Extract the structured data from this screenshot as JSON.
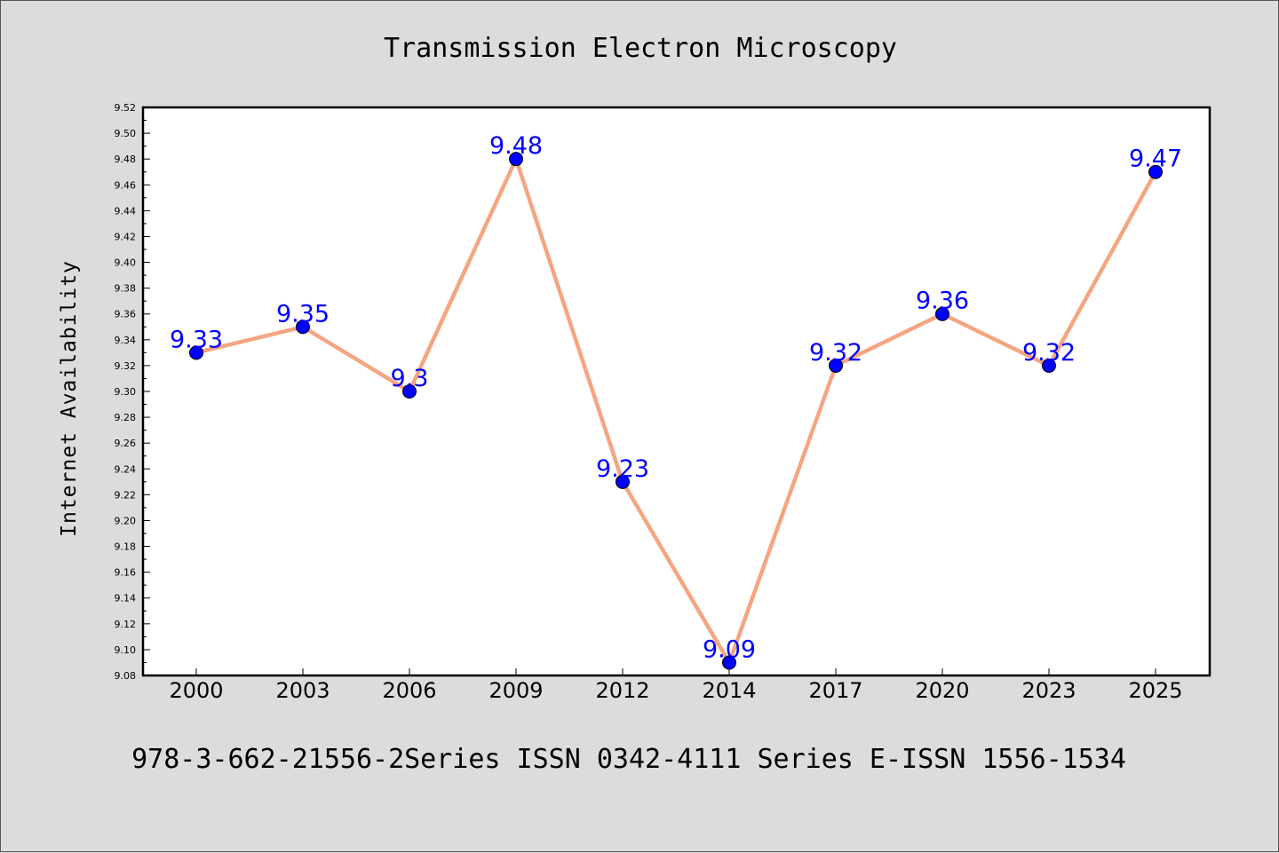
{
  "caption": "978-3-662-21556-2Series ISSN 0342-4111 Series E-ISSN 1556-1534",
  "chart_data": {
    "type": "line",
    "title": "Transmission Electron Microscopy",
    "xlabel": "",
    "ylabel": "Internet Availability",
    "categories": [
      "2000",
      "2003",
      "2006",
      "2009",
      "2012",
      "2014",
      "2017",
      "2020",
      "2023",
      "2025"
    ],
    "series": [
      {
        "values": [
          9.33,
          9.35,
          9.3,
          9.48,
          9.23,
          9.09,
          9.32,
          9.36,
          9.32,
          9.47
        ],
        "data_labels": [
          "9.33",
          "9.35",
          "9.3",
          "9.48",
          "9.23",
          "9.09",
          "9.32",
          "9.36",
          "9.32",
          "9.47"
        ],
        "line_color": "#f4a582",
        "marker_color": "#0000ff"
      }
    ],
    "ylim": [
      9.08,
      9.52
    ],
    "y_tick_labels": [
      "9.08",
      "9.10",
      "9.12",
      "9.14",
      "9.16",
      "9.18",
      "9.20",
      "9.22",
      "9.24",
      "9.26",
      "9.28",
      "9.30",
      "9.32",
      "9.34",
      "9.36",
      "9.38",
      "9.40",
      "9.42",
      "9.44",
      "9.46",
      "9.48",
      "9.50",
      "9.52"
    ],
    "grid": false,
    "colors": {
      "background": "#dcdcdc",
      "plot_area": "#ffffff",
      "label": "#0000ff"
    }
  }
}
